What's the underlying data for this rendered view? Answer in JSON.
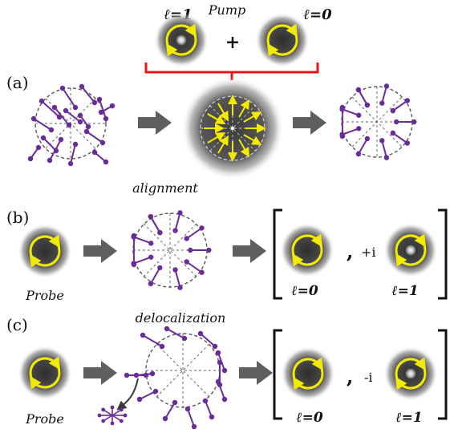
{
  "pump": {
    "title": "Pump",
    "left_beam_label": "ℓ=1",
    "right_beam_label": "ℓ=0",
    "plus": "+"
  },
  "panels": {
    "a": {
      "label": "(a)"
    },
    "b": {
      "label": "(b)",
      "caption": "alignment",
      "probe": "Probe",
      "bracket_left": "[",
      "bracket_right": "]",
      "separator": ",",
      "phase": "+i",
      "beam_left": "ℓ=0",
      "beam_right": "ℓ=1"
    },
    "c": {
      "label": "(c)",
      "caption": "delocalization",
      "probe": "Probe",
      "bracket_left": "[",
      "bracket_right": "]",
      "separator": ",",
      "phase": "-i",
      "beam_left": "ℓ=0",
      "beam_right": "ℓ=1"
    }
  },
  "colors": {
    "beam_ring": "#f2ea00",
    "beam_dark": "#3a3a3a",
    "molecule": "#6a2c9a",
    "arrow": "#5f5f5f",
    "bracket_red": "#e01818",
    "vector": "#f2ea00"
  },
  "icons": [
    "circular-arrow-icon",
    "right-arrow-icon",
    "curved-arrow-icon"
  ]
}
